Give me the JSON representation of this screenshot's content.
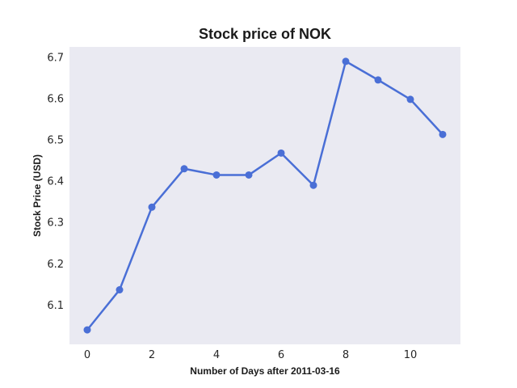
{
  "chart_data": {
    "type": "line",
    "title": "Stock price of NOK",
    "xlabel": "Number of Days after 2011-03-16",
    "ylabel": "Stock Price (USD)",
    "xlim": [
      -0.55,
      11.55
    ],
    "ylim": [
      6.005,
      6.725
    ],
    "xticks": [
      0,
      2,
      4,
      6,
      8,
      10
    ],
    "xtick_labels": [
      "0",
      "2",
      "4",
      "6",
      "8",
      "10"
    ],
    "yticks": [
      6.1,
      6.2,
      6.3,
      6.4,
      6.5,
      6.6,
      6.7
    ],
    "ytick_labels": [
      "6.1",
      "6.2",
      "6.3",
      "6.4",
      "6.5",
      "6.6",
      "6.7"
    ],
    "grid": false,
    "series": [
      {
        "color": "#4a6fd6",
        "x": [
          0,
          1,
          2,
          3,
          4,
          5,
          6,
          7,
          8,
          9,
          10,
          11
        ],
        "y": [
          6.04,
          6.137,
          6.337,
          6.43,
          6.415,
          6.415,
          6.468,
          6.39,
          6.69,
          6.645,
          6.598,
          6.513
        ]
      }
    ]
  }
}
